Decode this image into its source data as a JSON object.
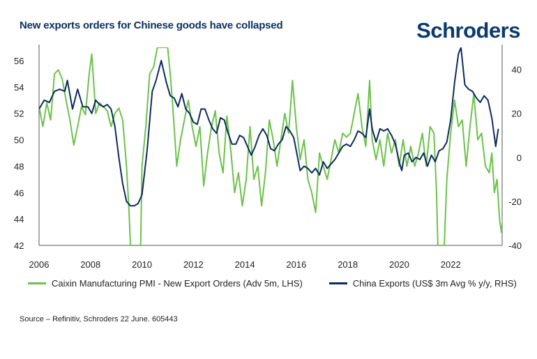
{
  "header": {
    "title": "New exports orders for Chinese goods have collapsed",
    "brand": "Schroders"
  },
  "footer": {
    "source": "Source – Refinitiv, Schroders 22 June. 605443"
  },
  "colors": {
    "green": "#6cc24a",
    "navy": "#0d2a5e",
    "axis": "#555555",
    "brand": "#0d3a6e"
  },
  "chart_data": {
    "type": "line",
    "title": "New exports orders for Chinese goods have collapsed",
    "xlabel": "",
    "ylabel": "",
    "x_range": [
      2006,
      2024
    ],
    "xticks": [
      "2006",
      "2008",
      "2010",
      "2012",
      "2014",
      "2016",
      "2018",
      "2020",
      "2022"
    ],
    "yleft": {
      "ticks": [
        "42",
        "44",
        "46",
        "48",
        "50",
        "52",
        "54",
        "56"
      ],
      "range": [
        42,
        57
      ]
    },
    "yright": {
      "ticks": [
        "-40",
        "-20",
        "0",
        "20",
        "40"
      ],
      "range": [
        -40,
        50
      ]
    },
    "grid": false,
    "legend": "bottom",
    "series": [
      {
        "name": "Caixin Manufacturing PMI - New Export Orders (Adv 5m, LHS)",
        "axis": "left",
        "color": "#6cc24a",
        "points": [
          [
            2006.0,
            52.5
          ],
          [
            2006.15,
            51.0
          ],
          [
            2006.3,
            52.8
          ],
          [
            2006.45,
            51.5
          ],
          [
            2006.6,
            55.0
          ],
          [
            2006.75,
            55.3
          ],
          [
            2006.9,
            54.6
          ],
          [
            2007.05,
            53.0
          ],
          [
            2007.2,
            51.5
          ],
          [
            2007.35,
            49.6
          ],
          [
            2007.5,
            51.0
          ],
          [
            2007.65,
            52.5
          ],
          [
            2007.8,
            51.9
          ],
          [
            2007.95,
            55.0
          ],
          [
            2008.05,
            56.5
          ],
          [
            2008.2,
            52.0
          ],
          [
            2008.35,
            52.8
          ],
          [
            2008.5,
            52.5
          ],
          [
            2008.65,
            52.2
          ],
          [
            2008.8,
            51.0
          ],
          [
            2008.95,
            52.0
          ],
          [
            2009.1,
            52.4
          ],
          [
            2009.25,
            51.5
          ],
          [
            2009.4,
            48.0
          ],
          [
            2009.5,
            44.5
          ],
          [
            2009.55,
            42.0
          ],
          [
            2009.95,
            42.0
          ],
          [
            2010.0,
            48.0
          ],
          [
            2010.15,
            51.0
          ],
          [
            2010.3,
            55.0
          ],
          [
            2010.45,
            55.5
          ],
          [
            2010.6,
            57.0
          ],
          [
            2011.0,
            57.0
          ],
          [
            2011.1,
            55.0
          ],
          [
            2011.2,
            52.5
          ],
          [
            2011.35,
            48.0
          ],
          [
            2011.5,
            50.0
          ],
          [
            2011.65,
            51.5
          ],
          [
            2011.8,
            53.0
          ],
          [
            2011.95,
            51.0
          ],
          [
            2012.1,
            49.5
          ],
          [
            2012.25,
            51.0
          ],
          [
            2012.4,
            46.5
          ],
          [
            2012.55,
            49.0
          ],
          [
            2012.7,
            51.0
          ],
          [
            2012.85,
            52.2
          ],
          [
            2013.0,
            49.0
          ],
          [
            2013.15,
            47.5
          ],
          [
            2013.3,
            51.8
          ],
          [
            2013.45,
            49.3
          ],
          [
            2013.6,
            46.0
          ],
          [
            2013.75,
            47.5
          ],
          [
            2013.9,
            45.0
          ],
          [
            2014.05,
            47.0
          ],
          [
            2014.2,
            51.0
          ],
          [
            2014.35,
            47.0
          ],
          [
            2014.5,
            48.0
          ],
          [
            2014.65,
            45.0
          ],
          [
            2014.8,
            47.5
          ],
          [
            2014.95,
            51.5
          ],
          [
            2015.1,
            50.0
          ],
          [
            2015.25,
            48.0
          ],
          [
            2015.4,
            50.0
          ],
          [
            2015.55,
            52.0
          ],
          [
            2015.7,
            50.5
          ],
          [
            2015.85,
            54.5
          ],
          [
            2016.0,
            51.0
          ],
          [
            2016.15,
            48.5
          ],
          [
            2016.3,
            50.0
          ],
          [
            2016.45,
            47.0
          ],
          [
            2016.6,
            46.0
          ],
          [
            2016.75,
            44.5
          ],
          [
            2016.9,
            49.0
          ],
          [
            2017.05,
            48.0
          ],
          [
            2017.2,
            47.0
          ],
          [
            2017.35,
            48.5
          ],
          [
            2017.5,
            50.0
          ],
          [
            2017.65,
            49.0
          ],
          [
            2017.8,
            50.5
          ],
          [
            2017.95,
            50.2
          ],
          [
            2018.1,
            50.5
          ],
          [
            2018.25,
            52.0
          ],
          [
            2018.4,
            53.5
          ],
          [
            2018.55,
            51.0
          ],
          [
            2018.7,
            49.5
          ],
          [
            2018.85,
            54.5
          ],
          [
            2018.95,
            50.0
          ],
          [
            2019.1,
            48.5
          ],
          [
            2019.25,
            50.0
          ],
          [
            2019.4,
            48.0
          ],
          [
            2019.55,
            50.5
          ],
          [
            2019.7,
            49.0
          ],
          [
            2019.85,
            50.0
          ],
          [
            2020.0,
            48.0
          ],
          [
            2020.15,
            50.0
          ],
          [
            2020.3,
            48.0
          ],
          [
            2020.45,
            49.5
          ],
          [
            2020.6,
            48.0
          ],
          [
            2020.75,
            49.0
          ],
          [
            2020.9,
            50.5
          ],
          [
            2021.05,
            48.0
          ],
          [
            2021.2,
            51.0
          ],
          [
            2021.35,
            50.5
          ],
          [
            2021.45,
            46.0
          ],
          [
            2021.5,
            42.0
          ],
          [
            2021.75,
            42.0
          ],
          [
            2021.85,
            47.0
          ],
          [
            2022.0,
            50.5
          ],
          [
            2022.15,
            53.0
          ],
          [
            2022.3,
            51.0
          ],
          [
            2022.45,
            51.5
          ],
          [
            2022.6,
            48.0
          ],
          [
            2022.75,
            51.0
          ],
          [
            2022.9,
            53.5
          ],
          [
            2023.05,
            50.0
          ],
          [
            2023.2,
            50.5
          ],
          [
            2023.35,
            48.0
          ],
          [
            2023.5,
            47.5
          ],
          [
            2023.6,
            49.0
          ],
          [
            2023.7,
            46.0
          ],
          [
            2023.8,
            47.0
          ],
          [
            2023.9,
            44.0
          ],
          [
            2023.97,
            43.0
          ],
          [
            2024.05,
            44.5
          ]
        ]
      },
      {
        "name": "China Exports (US$ 3m Avg % y/y, RHS)",
        "axis": "right",
        "color": "#0d2a5e",
        "points": [
          [
            2006.0,
            22
          ],
          [
            2006.2,
            26
          ],
          [
            2006.4,
            25
          ],
          [
            2006.6,
            30
          ],
          [
            2006.8,
            31
          ],
          [
            2007.0,
            30
          ],
          [
            2007.1,
            35
          ],
          [
            2007.3,
            22
          ],
          [
            2007.5,
            31
          ],
          [
            2007.7,
            23
          ],
          [
            2007.9,
            23
          ],
          [
            2008.05,
            20
          ],
          [
            2008.2,
            26
          ],
          [
            2008.35,
            24
          ],
          [
            2008.5,
            23
          ],
          [
            2008.65,
            24
          ],
          [
            2008.8,
            22
          ],
          [
            2008.95,
            14
          ],
          [
            2009.1,
            0
          ],
          [
            2009.25,
            -12
          ],
          [
            2009.4,
            -20
          ],
          [
            2009.55,
            -22
          ],
          [
            2009.7,
            -22
          ],
          [
            2009.85,
            -21
          ],
          [
            2010.0,
            -17
          ],
          [
            2010.2,
            3
          ],
          [
            2010.4,
            30
          ],
          [
            2010.55,
            35
          ],
          [
            2010.75,
            44
          ],
          [
            2010.95,
            34
          ],
          [
            2011.1,
            28
          ],
          [
            2011.25,
            27
          ],
          [
            2011.4,
            23
          ],
          [
            2011.55,
            29
          ],
          [
            2011.7,
            22
          ],
          [
            2011.85,
            20
          ],
          [
            2012.0,
            16
          ],
          [
            2012.15,
            15
          ],
          [
            2012.3,
            22
          ],
          [
            2012.45,
            22
          ],
          [
            2012.6,
            17
          ],
          [
            2012.75,
            13
          ],
          [
            2012.9,
            11
          ],
          [
            2013.05,
            18
          ],
          [
            2013.2,
            17
          ],
          [
            2013.35,
            11
          ],
          [
            2013.5,
            6
          ],
          [
            2013.65,
            6
          ],
          [
            2013.8,
            10
          ],
          [
            2013.95,
            9
          ],
          [
            2014.1,
            5
          ],
          [
            2014.25,
            1
          ],
          [
            2014.4,
            5
          ],
          [
            2014.55,
            10
          ],
          [
            2014.7,
            13
          ],
          [
            2014.85,
            10
          ],
          [
            2015.0,
            4
          ],
          [
            2015.15,
            3
          ],
          [
            2015.3,
            6
          ],
          [
            2015.45,
            8
          ],
          [
            2015.6,
            14
          ],
          [
            2015.75,
            12
          ],
          [
            2015.9,
            9
          ],
          [
            2016.05,
            0
          ],
          [
            2016.15,
            -6
          ],
          [
            2016.3,
            -4
          ],
          [
            2016.45,
            -5
          ],
          [
            2016.6,
            -7
          ],
          [
            2016.75,
            -5
          ],
          [
            2016.9,
            -8
          ],
          [
            2017.05,
            -2
          ],
          [
            2017.2,
            -5
          ],
          [
            2017.35,
            -3
          ],
          [
            2017.5,
            -1
          ],
          [
            2017.65,
            2
          ],
          [
            2017.8,
            5
          ],
          [
            2017.95,
            6
          ],
          [
            2018.1,
            5
          ],
          [
            2018.25,
            8
          ],
          [
            2018.4,
            12
          ],
          [
            2018.55,
            11
          ],
          [
            2018.7,
            9
          ],
          [
            2018.85,
            22
          ],
          [
            2018.95,
            13
          ],
          [
            2019.1,
            7
          ],
          [
            2019.25,
            13
          ],
          [
            2019.4,
            12
          ],
          [
            2019.55,
            13
          ],
          [
            2019.7,
            10
          ],
          [
            2019.85,
            6
          ],
          [
            2020.0,
            -2
          ],
          [
            2020.1,
            -6
          ],
          [
            2020.2,
            1
          ],
          [
            2020.35,
            2
          ],
          [
            2020.5,
            -2
          ],
          [
            2020.65,
            0
          ],
          [
            2020.8,
            -1
          ],
          [
            2020.95,
            2
          ],
          [
            2021.1,
            -4
          ],
          [
            2021.25,
            1
          ],
          [
            2021.4,
            -2
          ],
          [
            2021.55,
            3
          ],
          [
            2021.7,
            4
          ],
          [
            2021.85,
            7
          ],
          [
            2022.0,
            17
          ],
          [
            2022.15,
            34
          ],
          [
            2022.3,
            47
          ],
          [
            2022.4,
            50
          ],
          [
            2022.55,
            33
          ],
          [
            2022.7,
            31
          ],
          [
            2022.85,
            30
          ],
          [
            2023.0,
            27
          ],
          [
            2023.15,
            25
          ],
          [
            2023.3,
            28
          ],
          [
            2023.45,
            26
          ],
          [
            2023.6,
            18
          ],
          [
            2023.75,
            5
          ],
          [
            2023.85,
            13
          ]
        ]
      }
    ]
  }
}
